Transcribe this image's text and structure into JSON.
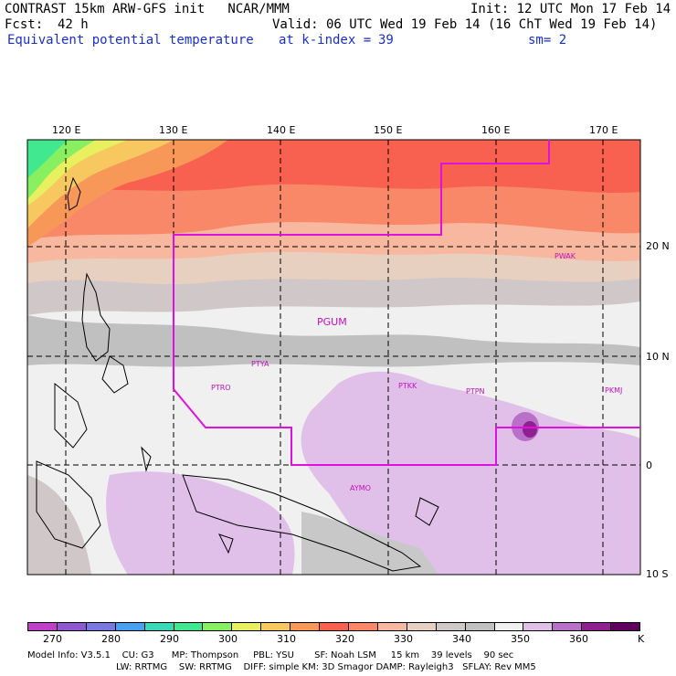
{
  "header": {
    "title_left": "CONTRAST 15km ARW-GFS init   NCAR/MMM",
    "init": "Init: 12 UTC Mon 17 Feb 14",
    "fcst_label": "Fcst:",
    "fcst_value": "42 h",
    "valid": "Valid: 06 UTC Wed 19 Feb 14 (16 ChT Wed 19 Feb 14)",
    "field": "Equivalent potential temperature",
    "level_label": "at k-index =",
    "level_value": "39",
    "smoothing": "sm= 2"
  },
  "map": {
    "lon_labels": [
      "120 E",
      "130 E",
      "140 E",
      "150 E",
      "160 E",
      "170 E"
    ],
    "lat_labels": [
      "20 N",
      "10 N",
      "0",
      "10 S"
    ],
    "stations": [
      "PGUM",
      "PWAK",
      "PTYA",
      "PTRO",
      "PTKK",
      "PTPN",
      "PKMJ",
      "AYMO"
    ],
    "colors": {
      "boundary": "#e010e0",
      "station_text": "#c010c0",
      "grid": "#000000"
    }
  },
  "colorbar": {
    "labels": [
      "270",
      "280",
      "290",
      "300",
      "310",
      "320",
      "330",
      "340",
      "350",
      "360",
      "K"
    ],
    "colors": [
      "#c040c8",
      "#9058d0",
      "#7878e0",
      "#4aa0f0",
      "#38d8b8",
      "#40e890",
      "#88f060",
      "#e8f060",
      "#f8c860",
      "#f89858",
      "#f86050",
      "#f88868",
      "#f8b8a0",
      "#e8d0c0",
      "#d0c8c8",
      "#c0c0c0",
      "#f0f0f0",
      "#e0c0e8",
      "#b870c8",
      "#902090",
      "#600060"
    ]
  },
  "footer": {
    "line1": "Model Info: V3.5.1    CU: G3      MP: Thompson     PBL: YSU       SF: Noah LSM     15 km    39 levels    90 sec",
    "line2": "LW: RRTMG    SW: RRTMG    DIFF: simple KM: 3D Smagor DAMP: Rayleigh3   SFLAY: Rev MM5"
  }
}
